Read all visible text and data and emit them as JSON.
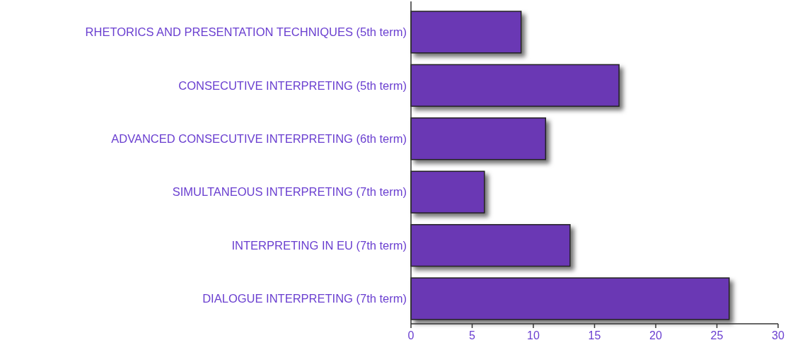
{
  "chart_data": {
    "type": "bar",
    "orientation": "horizontal",
    "categories": [
      "RHETORICS AND PRESENTATION TECHNIQUES (5th term)",
      "CONSECUTIVE INTERPRETING (5th term)",
      "ADVANCED CONSECUTIVE INTERPRETING (6th term)",
      "SIMULTANEOUS INTERPRETING (7th term)",
      "INTERPRETING IN EU (7th term)",
      "DIALOGUE INTERPRETING (7th term)"
    ],
    "values": [
      9,
      17,
      11,
      6,
      13,
      26
    ],
    "color": "#6a38b4",
    "xlim": [
      0,
      30
    ],
    "xticks": [
      0,
      5,
      10,
      15,
      20,
      25,
      30
    ],
    "grid": false
  }
}
